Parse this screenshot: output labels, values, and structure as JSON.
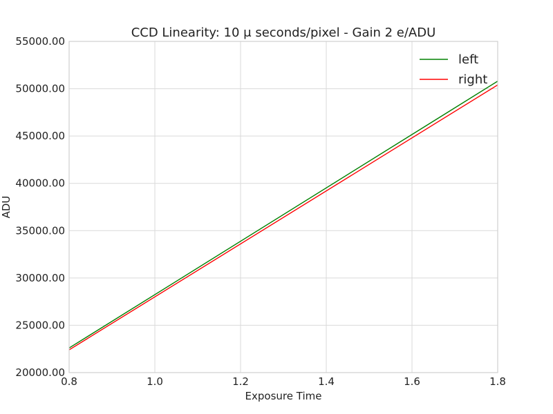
{
  "chart_data": {
    "type": "line",
    "title": "CCD Linearity:  10 μ seconds/pixel - Gain 2 e/ADU",
    "xlabel": "Exposure Time",
    "ylabel": "ADU",
    "xlim": [
      0.8,
      1.8
    ],
    "ylim": [
      20000,
      55000
    ],
    "xticks": [
      0.8,
      1.0,
      1.2,
      1.4,
      1.6,
      1.8
    ],
    "xtick_labels": [
      "0.8",
      "1.0",
      "1.2",
      "1.4",
      "1.6",
      "1.8"
    ],
    "yticks": [
      20000,
      25000,
      30000,
      35000,
      40000,
      45000,
      50000,
      55000
    ],
    "ytick_labels": [
      "20000.00",
      "25000.00",
      "30000.00",
      "35000.00",
      "40000.00",
      "45000.00",
      "50000.00",
      "55000.00"
    ],
    "grid": true,
    "legend_position": "top-right",
    "series": [
      {
        "name": "left",
        "color": "#008000",
        "x": [
          0.8,
          1.8
        ],
        "y": [
          22600,
          50800
        ]
      },
      {
        "name": "right",
        "color": "#ff0000",
        "x": [
          0.8,
          1.8
        ],
        "y": [
          22400,
          50400
        ]
      }
    ]
  }
}
